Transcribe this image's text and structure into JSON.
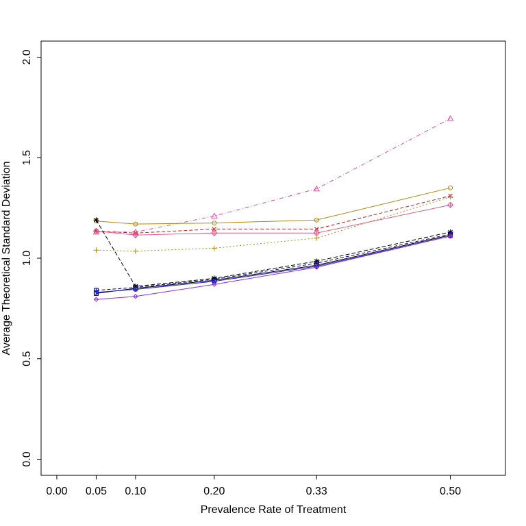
{
  "chart_data": {
    "type": "line",
    "title": "",
    "xlabel": "Prevalence Rate of Treatment",
    "ylabel": "Average Theoretical Standard Deviation",
    "x_ticks": [
      "0.00",
      "0.05",
      "0.10",
      "0.20",
      "0.33",
      "0.50"
    ],
    "x_tick_values": [
      0.0,
      0.05,
      0.1,
      0.2,
      0.33,
      0.5
    ],
    "y_ticks": [
      "0.0",
      "0.5",
      "1.0",
      "1.5",
      "2.0"
    ],
    "y_tick_values": [
      0.0,
      0.5,
      1.0,
      1.5,
      2.0
    ],
    "xlim": [
      -0.02,
      0.57
    ],
    "ylim": [
      -0.08,
      2.08
    ],
    "grid": false,
    "legend": "none",
    "x": [
      0.05,
      0.1,
      0.2,
      0.33,
      0.5
    ],
    "series": [
      {
        "values": [
          1.13,
          1.13,
          1.21,
          1.345,
          1.695
        ],
        "color": "#e0529c",
        "dash": "6,3,1,3",
        "marker": "triangle"
      },
      {
        "values": [
          1.185,
          1.17,
          1.175,
          1.19,
          1.35
        ],
        "color": "#b8860b",
        "dash": "",
        "marker": "circle"
      },
      {
        "values": [
          1.135,
          1.125,
          1.145,
          1.145,
          1.31
        ],
        "color": "#b22222",
        "dash": "5,3",
        "marker": "x"
      },
      {
        "values": [
          1.135,
          1.115,
          1.125,
          1.125,
          1.265
        ],
        "color": "#e05a8c",
        "dash": "",
        "marker": "diamond-plus"
      },
      {
        "values": [
          1.04,
          1.035,
          1.05,
          1.1,
          1.305
        ],
        "color": "#b8860b",
        "dash": "2,3",
        "marker": "plus"
      },
      {
        "values": [
          1.19,
          0.86,
          0.9,
          0.985,
          1.13
        ],
        "color": "#000000",
        "dash": "6,3",
        "marker": "star"
      },
      {
        "values": [
          0.84,
          0.855,
          0.895,
          0.975,
          1.12
        ],
        "color": "#00008b",
        "dash": "5,3",
        "marker": "square-plus"
      },
      {
        "values": [
          0.825,
          0.85,
          0.89,
          0.965,
          1.115
        ],
        "color": "#000000",
        "dash": "",
        "marker": "square"
      },
      {
        "values": [
          0.83,
          0.845,
          0.885,
          0.96,
          1.11
        ],
        "color": "#1e1ec8",
        "dash": "",
        "marker": "circle-plus"
      },
      {
        "values": [
          0.795,
          0.81,
          0.87,
          0.955,
          1.11
        ],
        "color": "#8a2be2",
        "dash": "",
        "marker": "diamond-small"
      }
    ]
  }
}
